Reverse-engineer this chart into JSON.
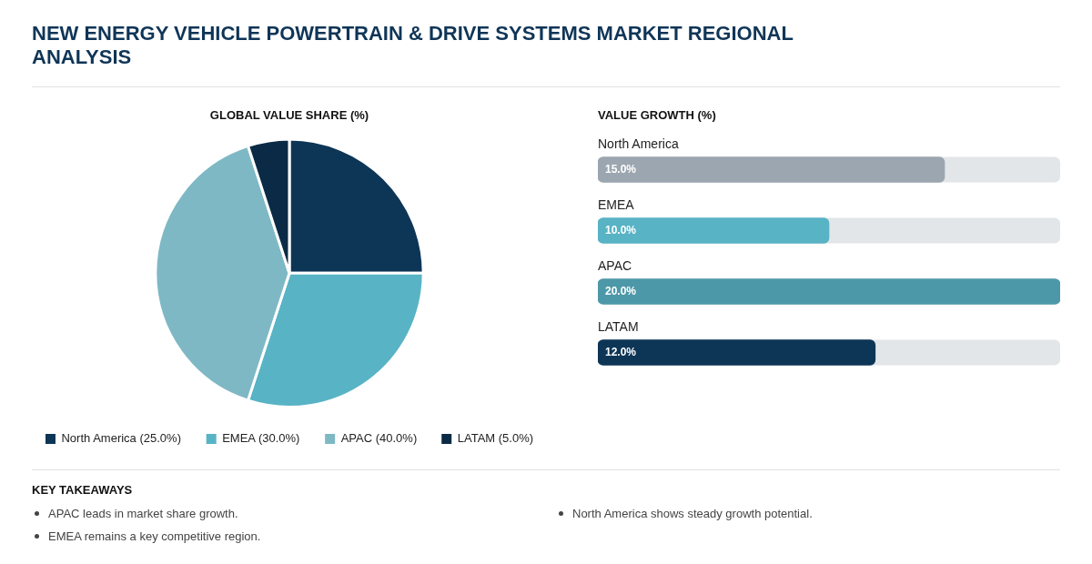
{
  "chart_data": [
    {
      "type": "other",
      "title": "NEW ENERGY VEHICLE POWERTRAIN & DRIVE SYSTEMS MARKET REGIONAL ANALYSIS"
    },
    {
      "type": "pie",
      "title": "GLOBAL VALUE SHARE (%)",
      "categories": [
        "North America (25.0%)",
        "EMEA (30.0%)",
        "APAC (40.0%)",
        "LATAM (5.0%)"
      ],
      "values": [
        25,
        30,
        40,
        5
      ],
      "colors": [
        "#0d3556",
        "#58b3c5",
        "#7fb8c5",
        "#0a2a45"
      ],
      "legend": "bottom"
    },
    {
      "type": "bar",
      "orientation": "horizontal",
      "title": "VALUE GROWTH (%)",
      "categories": [
        "North America",
        "EMEA",
        "APAC",
        "LATAM"
      ],
      "values": [
        15,
        10,
        20,
        12
      ],
      "value_labels": [
        "15.0%",
        "10.0%",
        "20.0%",
        "12.0%"
      ],
      "colors": [
        "#9ca6b0",
        "#58b3c5",
        "#4d98a8",
        "#0d3556"
      ],
      "tick_labels": "y"
    },
    {
      "type": "other",
      "title": "KEY TAKEAWAYS",
      "annotations": [
        "APAC leads in market share growth.",
        "EMEA remains a key competitive region.",
        "North America shows steady growth potential."
      ]
    }
  ]
}
